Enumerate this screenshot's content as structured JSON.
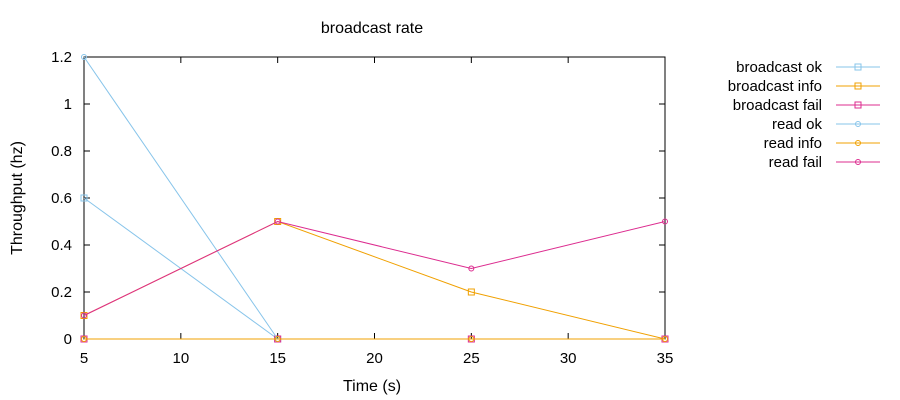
{
  "chart_data": {
    "type": "line",
    "title": "broadcast rate",
    "xlabel": "Time (s)",
    "ylabel": "Throughput (hz)",
    "xlim": [
      5,
      35
    ],
    "ylim": [
      0,
      1.2
    ],
    "x_ticks": [
      "5",
      "10",
      "15",
      "20",
      "25",
      "30",
      "35"
    ],
    "y_ticks": [
      "0",
      "0.2",
      "0.4",
      "0.6",
      "0.8",
      "1",
      "1.2"
    ],
    "grid": false,
    "legend_position": "outside-right-top",
    "series": [
      {
        "name": "broadcast ok",
        "color": "#87c4ea",
        "marker": "square",
        "points": [
          [
            5,
            0.6
          ],
          [
            15,
            0
          ]
        ]
      },
      {
        "name": "broadcast info",
        "color": "#f0a000",
        "marker": "square",
        "points": [
          [
            5,
            0.1
          ],
          [
            15,
            0.5
          ],
          [
            25,
            0.2
          ],
          [
            35,
            0
          ]
        ]
      },
      {
        "name": "broadcast fail",
        "color": "#dc2c8f",
        "marker": "square",
        "points": [
          [
            5,
            0
          ],
          [
            15,
            0
          ],
          [
            25,
            0
          ],
          [
            35,
            0
          ]
        ]
      },
      {
        "name": "read ok",
        "color": "#87c4ea",
        "marker": "circle",
        "points": [
          [
            5,
            1.2
          ],
          [
            15,
            0
          ]
        ]
      },
      {
        "name": "read info",
        "color": "#f0a000",
        "marker": "circle",
        "points": [
          [
            5,
            0
          ],
          [
            15,
            0
          ],
          [
            25,
            0
          ],
          [
            35,
            0
          ]
        ]
      },
      {
        "name": "read fail",
        "color": "#dc2c8f",
        "marker": "circle",
        "points": [
          [
            5,
            0.1
          ],
          [
            15,
            0.5
          ],
          [
            25,
            0.3
          ],
          [
            35,
            0.5
          ]
        ]
      }
    ]
  }
}
